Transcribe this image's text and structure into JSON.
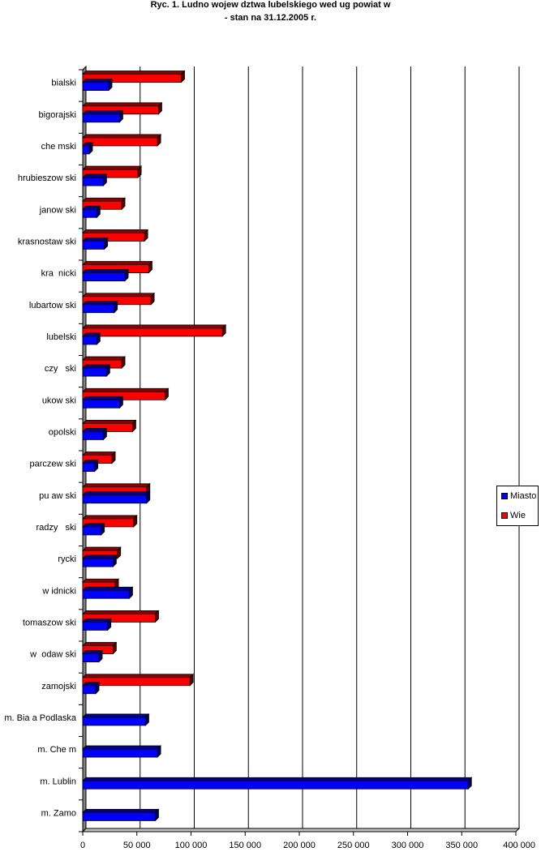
{
  "chart_data": {
    "type": "bar",
    "orientation": "horizontal",
    "title": "Ryc. 1. Ludno      wojew   dztwa lubelskiego wed ug powiat  w",
    "subtitle": "- stan na 31.12.2005 r.",
    "categories": [
      "bialski",
      "bigorajski",
      "che mski",
      "hrubieszow ski",
      "janow ski",
      "krasnostaw ski",
      "kra  nicki",
      "lubartow ski",
      "lubelski",
      "  czy   ski",
      "  ukow ski",
      "opolski",
      "parczew ski",
      "pu aw ski",
      "radzy   ski",
      "  rycki",
      "  w idnicki",
      "tomaszow ski",
      "w  odaw ski",
      "zamojski",
      "m. Bia a Podlaska",
      "m. Che m",
      "m. Lublin",
      "m. Zamo"
    ],
    "series": [
      {
        "name": "Miasto",
        "color": "#0000ff",
        "values": [
          24000,
          34000,
          6000,
          19000,
          13000,
          20000,
          39000,
          29000,
          13000,
          22000,
          34000,
          19000,
          11000,
          59000,
          17000,
          28000,
          43000,
          23000,
          15000,
          12000,
          58000,
          69000,
          356000,
          67000
        ]
      },
      {
        "name": "Wie",
        "color": "#ff0000",
        "values": [
          91000,
          70000,
          69000,
          51000,
          36000,
          57000,
          61000,
          63000,
          129000,
          36000,
          76000,
          46000,
          27000,
          59000,
          47000,
          32000,
          30000,
          67000,
          28000,
          99000,
          0,
          0,
          0,
          0
        ]
      }
    ],
    "xlim": [
      0,
      400000
    ],
    "xticks": [
      0,
      50000,
      100000,
      150000,
      200000,
      250000,
      300000,
      350000,
      400000
    ],
    "xtick_labels": [
      "0",
      "50 000",
      "100 000",
      "150 000",
      "200 000",
      "250 000",
      "300 000",
      "350 000",
      "400 000"
    ],
    "grid": true,
    "legend_position": "right"
  }
}
